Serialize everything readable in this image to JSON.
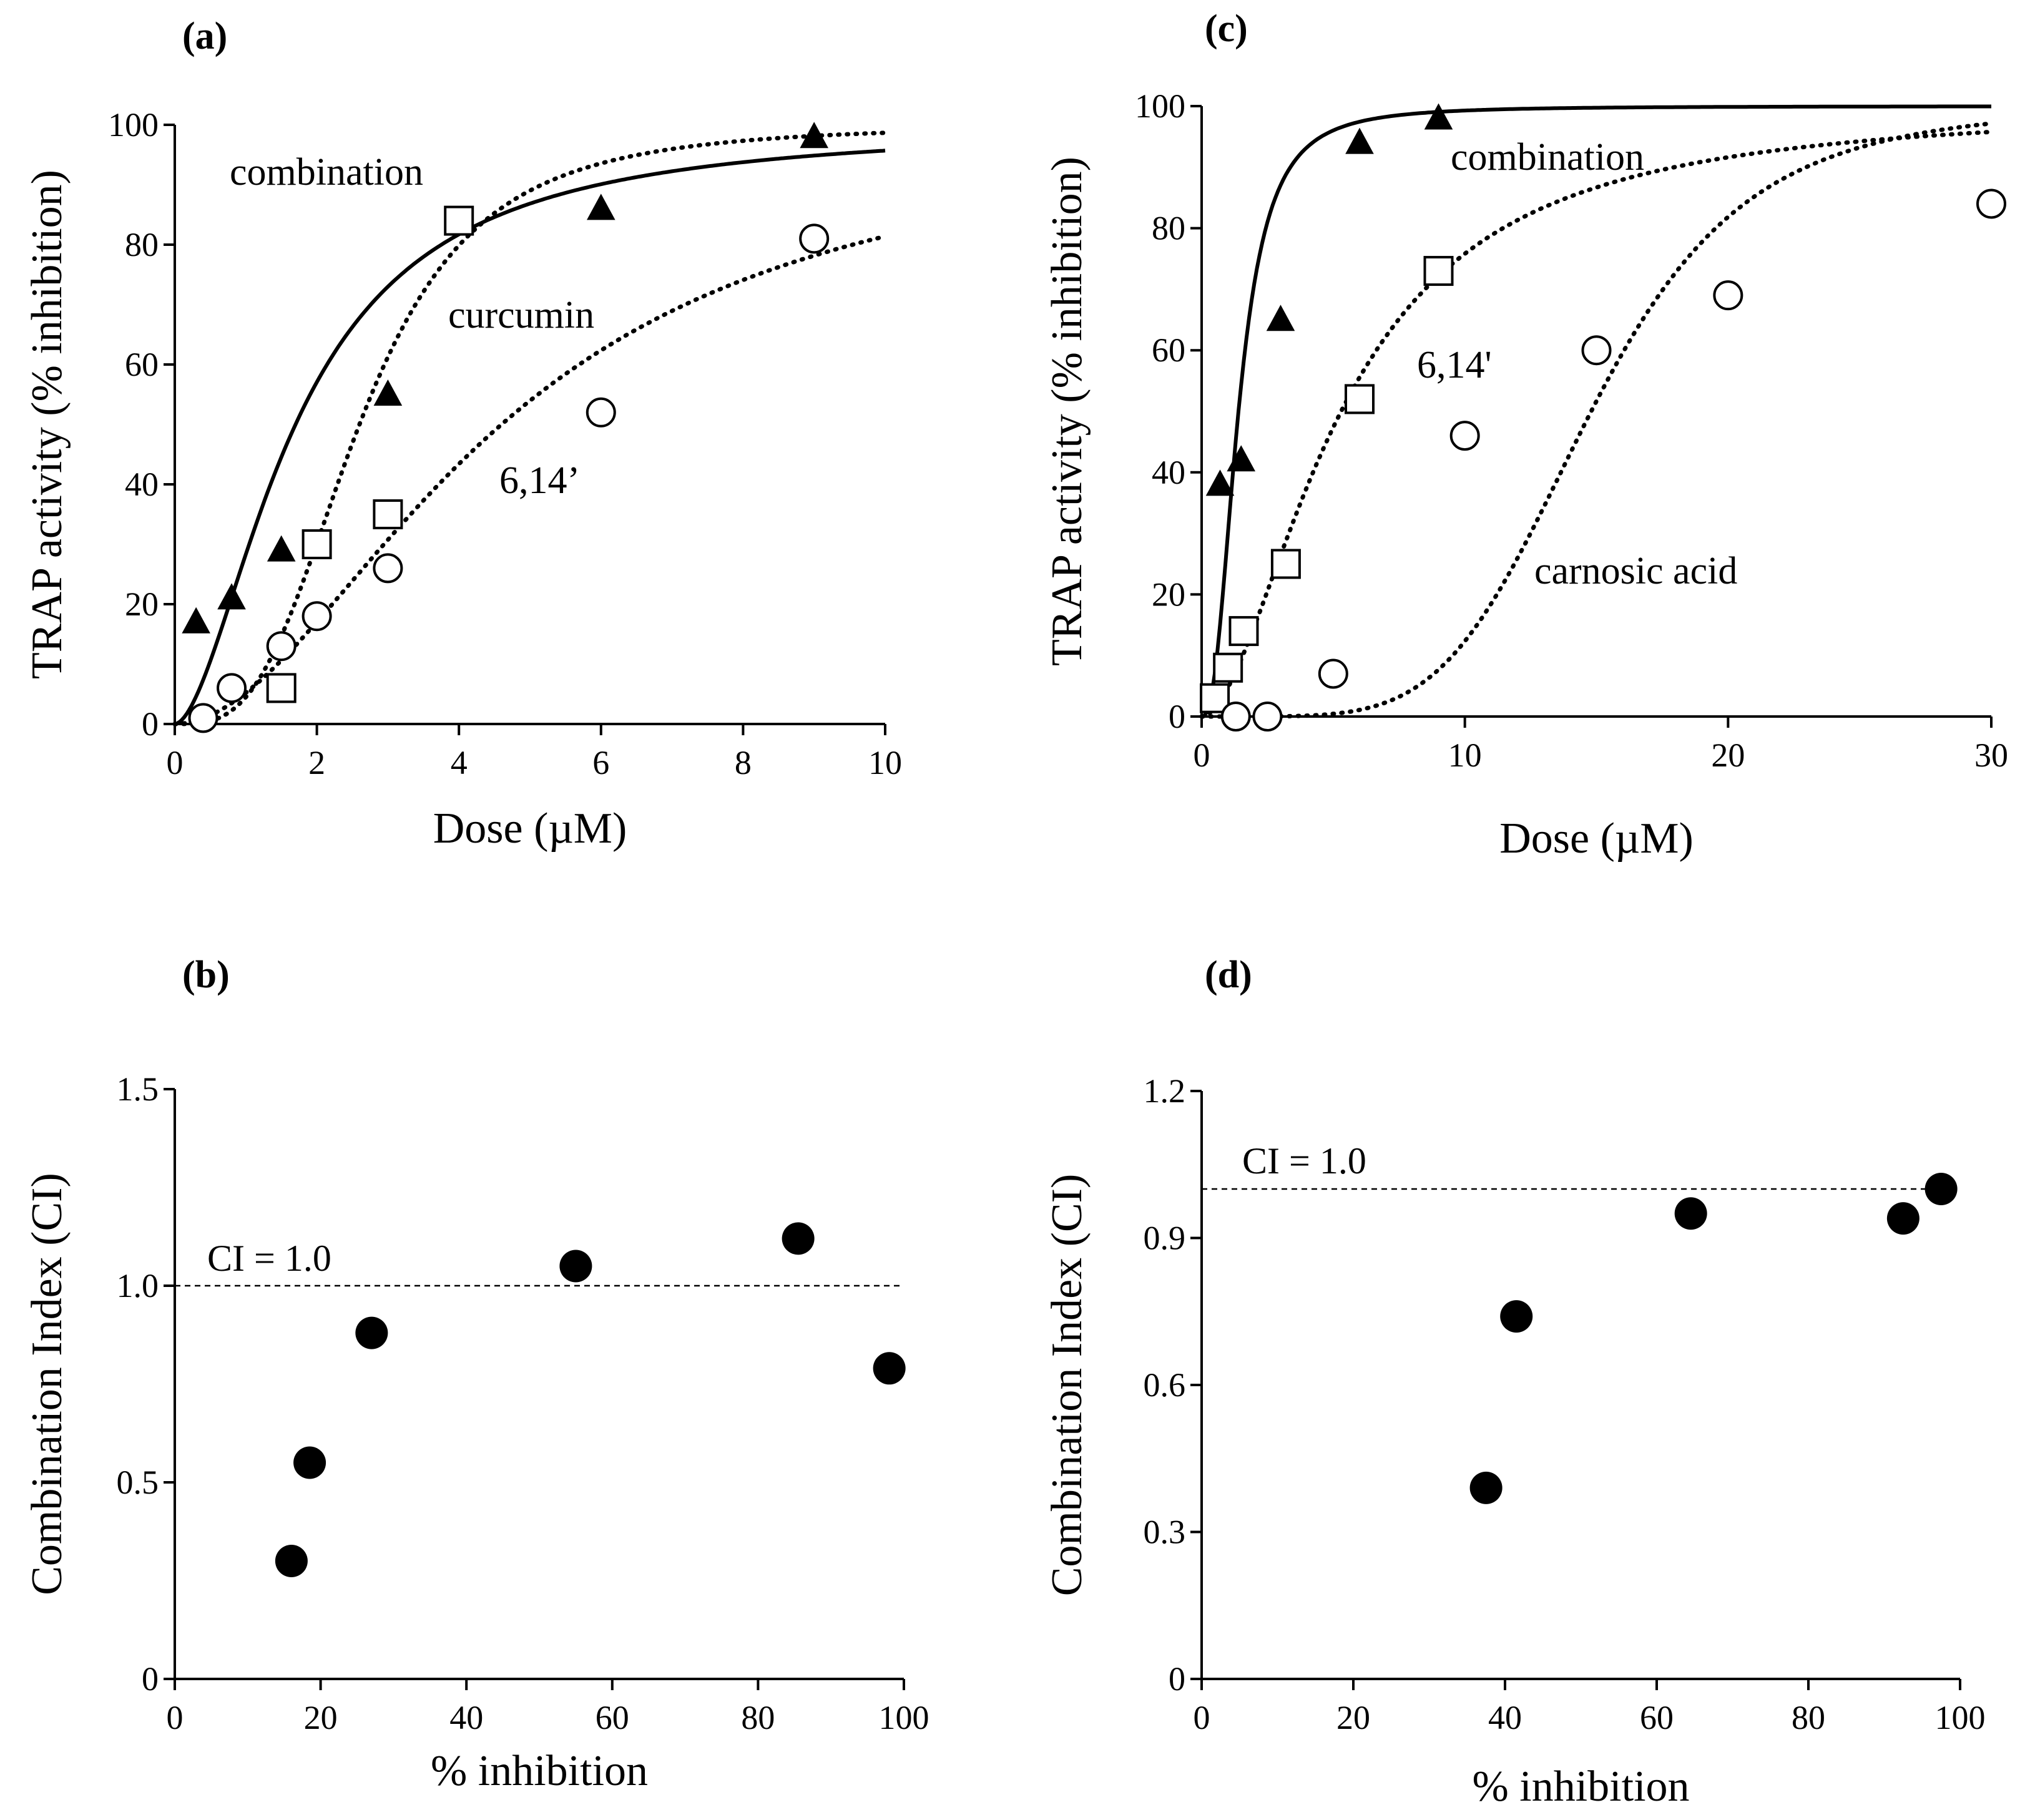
{
  "chart_data": [
    {
      "id": "a",
      "panel_label": "(a)",
      "type": "scatter",
      "xlabel": "Dose (µM)",
      "ylabel": "TRAP activity (% inhibition)",
      "xlim": [
        0,
        10
      ],
      "ylim": [
        0,
        100
      ],
      "x_ticks": [
        0,
        2,
        4,
        6,
        8,
        10
      ],
      "y_ticks": [
        0,
        20,
        40,
        60,
        80,
        100
      ],
      "series": [
        {
          "name": "combination",
          "marker": "triangle-filled",
          "line": "solid",
          "x": [
            0.3,
            0.8,
            1.5,
            3.0,
            6.0,
            9.0
          ],
          "y": [
            17,
            21,
            29,
            55,
            86,
            98
          ],
          "fit": {
            "dm": 1.7,
            "m": 1.75,
            "max": 100
          }
        },
        {
          "name": "curcumin",
          "marker": "square-open",
          "line": "dotted",
          "x": [
            1.5,
            2.0,
            3.0,
            4.0
          ],
          "y": [
            6,
            30,
            35,
            84
          ],
          "fit": {
            "dm": 2.6,
            "m": 3.2,
            "max": 100
          }
        },
        {
          "name": "6,14’",
          "marker": "circle-open",
          "line": "dotted",
          "x": [
            0.4,
            0.8,
            1.5,
            2.0,
            3.0,
            6.0,
            9.0
          ],
          "y": [
            1,
            6,
            13,
            18,
            26,
            52,
            81
          ],
          "fit": {
            "dm": 4.6,
            "m": 1.9,
            "max": 100
          }
        }
      ],
      "curve_labels": [
        "combination",
        "curcumin",
        "6,14’"
      ]
    },
    {
      "id": "b",
      "panel_label": "(b)",
      "type": "scatter",
      "xlabel": "% inhibition",
      "ylabel": "Combination Index (CI)",
      "xlim": [
        0,
        100
      ],
      "ylim": [
        0,
        1.5
      ],
      "x_ticks": [
        0,
        20,
        40,
        60,
        80,
        100
      ],
      "y_ticks": [
        0,
        0.5,
        1.0,
        1.5
      ],
      "y_tick_labels": [
        "0",
        "0.5",
        "1.0",
        "1.5"
      ],
      "reference_line": {
        "y": 1.0,
        "label": "CI = 1.0"
      },
      "series": [
        {
          "name": "CI",
          "marker": "circle-filled",
          "x": [
            16,
            18.5,
            27,
            55,
            85.5,
            98
          ],
          "y": [
            0.3,
            0.55,
            0.88,
            1.05,
            1.12,
            0.79
          ]
        }
      ]
    },
    {
      "id": "c",
      "panel_label": "(c)",
      "type": "scatter",
      "xlabel": "Dose (µM)",
      "ylabel": "TRAP activity (% inhibition)",
      "xlim": [
        0,
        30
      ],
      "ylim": [
        0,
        100
      ],
      "x_ticks": [
        0,
        10,
        20,
        30
      ],
      "y_ticks": [
        0,
        20,
        40,
        60,
        80,
        100
      ],
      "series": [
        {
          "name": "combination",
          "marker": "triangle-filled",
          "line": "solid",
          "x": [
            0.7,
            1.5,
            3.0,
            6.0,
            9.0
          ],
          "y": [
            38,
            42,
            65,
            94,
            98
          ],
          "fit": {
            "dm": 1.4,
            "m": 2.5,
            "max": 100
          }
        },
        {
          "name": "6,14'",
          "marker": "square-open",
          "line": "dotted",
          "x": [
            0.5,
            1.0,
            1.6,
            3.2,
            6.0,
            9.0
          ],
          "y": [
            3,
            8,
            14,
            25,
            52,
            73
          ],
          "fit": {
            "dm": 5.3,
            "m": 1.8,
            "max": 100
          }
        },
        {
          "name": "carnosic acid",
          "marker": "circle-open",
          "line": "dotted",
          "x": [
            1.3,
            2.5,
            5.0,
            10.0,
            15.0,
            20.0,
            30.0
          ],
          "y": [
            0,
            0,
            7,
            46,
            60,
            69,
            84
          ],
          "fit": {
            "dm": 14.8,
            "m": 5.0,
            "max": 100
          }
        }
      ],
      "curve_labels": [
        "combination",
        "6,14'",
        "carnosic acid"
      ]
    },
    {
      "id": "d",
      "panel_label": "(d)",
      "type": "scatter",
      "xlabel": "% inhibition",
      "ylabel": "Combination Index (CI)",
      "xlim": [
        0,
        100
      ],
      "ylim": [
        0,
        1.2
      ],
      "x_ticks": [
        0,
        20,
        40,
        60,
        80,
        100
      ],
      "y_ticks": [
        0,
        0.3,
        0.6,
        0.9,
        1.2
      ],
      "y_tick_labels": [
        "0",
        "0.3",
        "0.6",
        "0.9",
        "1.2"
      ],
      "reference_line": {
        "y": 1.0,
        "label": "CI = 1.0"
      },
      "series": [
        {
          "name": "CI",
          "marker": "circle-filled",
          "x": [
            37.5,
            41.5,
            64.5,
            92.5,
            97.5
          ],
          "y": [
            0.39,
            0.74,
            0.95,
            0.94,
            1.0
          ]
        }
      ]
    }
  ]
}
